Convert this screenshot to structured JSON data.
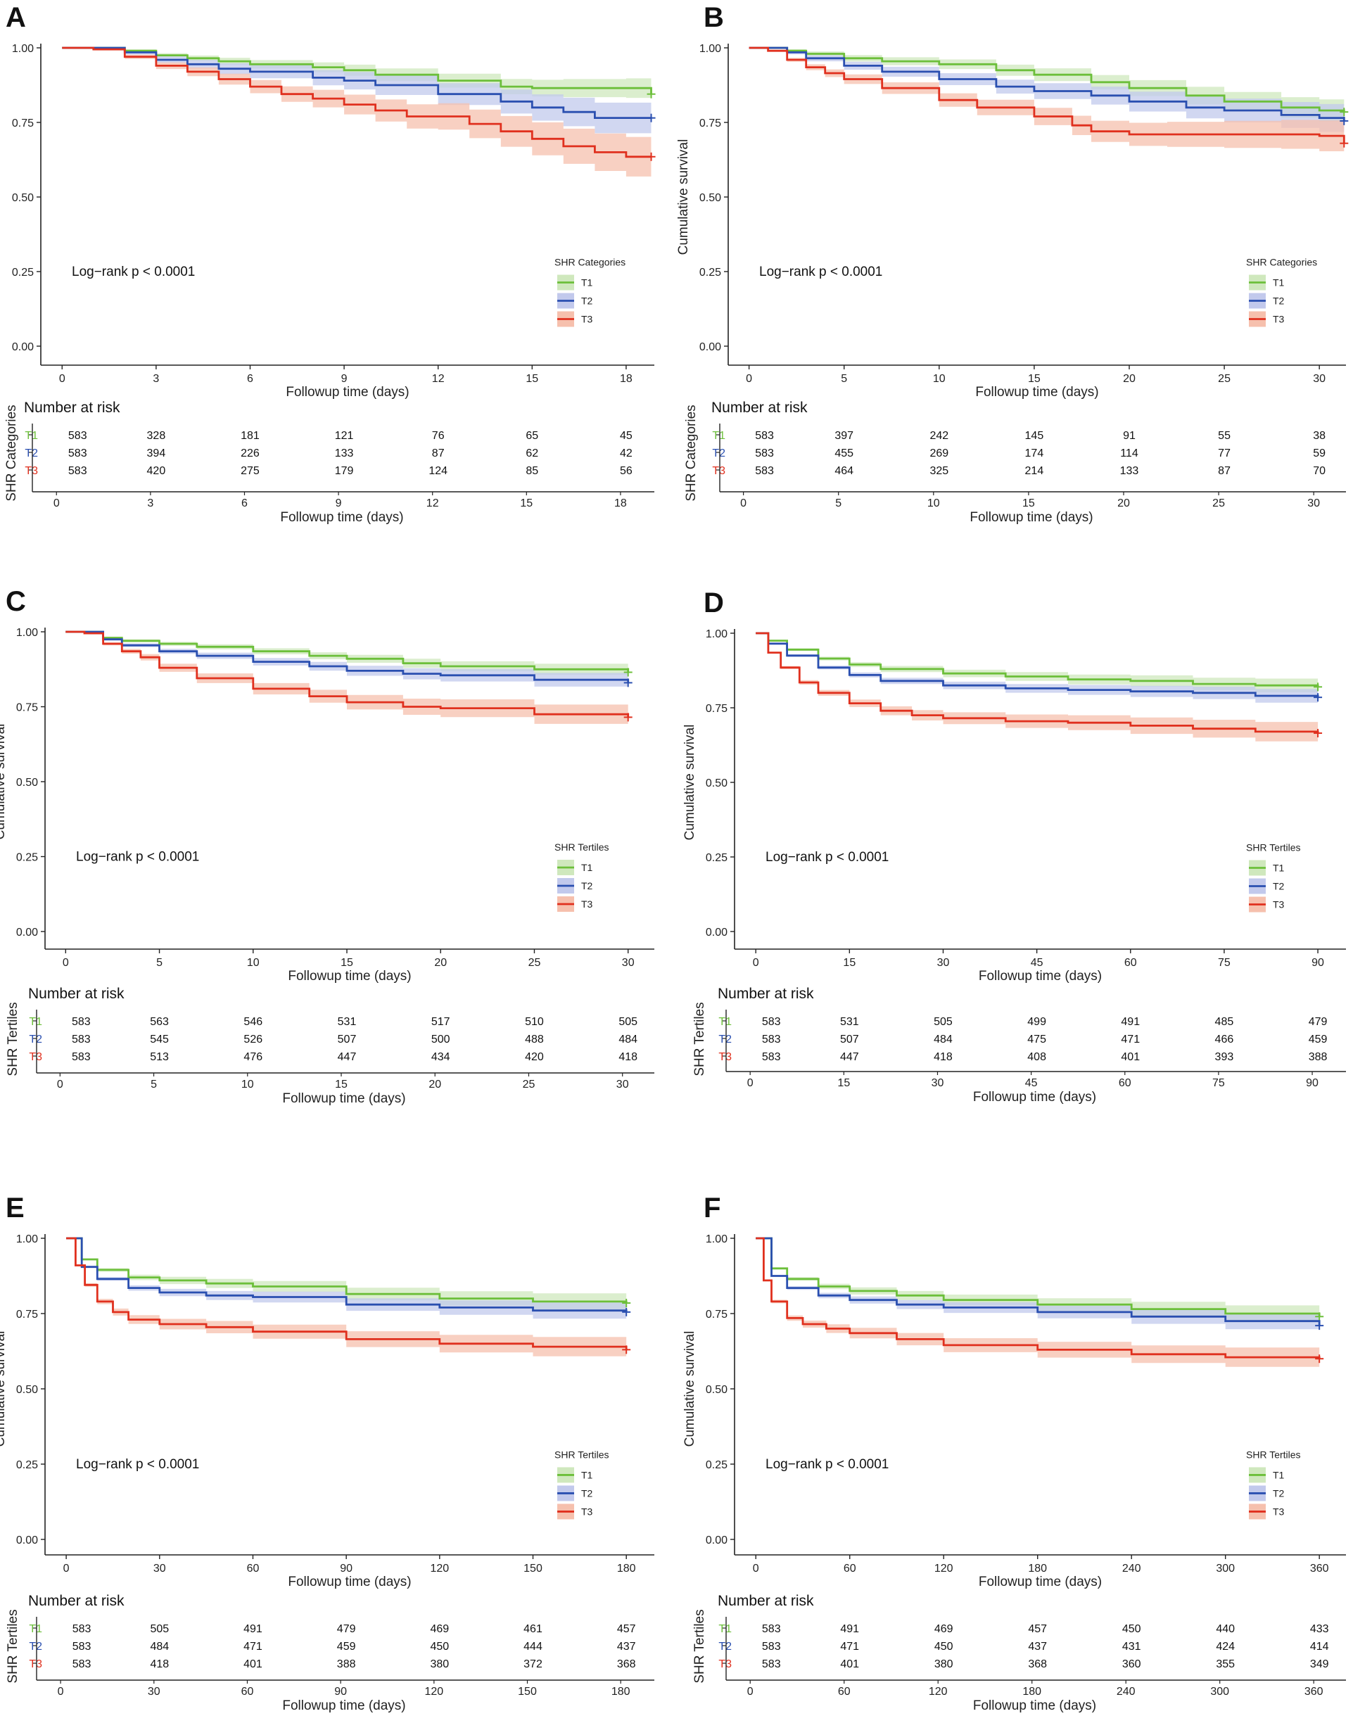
{
  "figure": {
    "colors": {
      "T1": "#6cbf3a",
      "T2": "#2a4fb0",
      "T3": "#e0301e",
      "T1_band": "#cfe8bd",
      "T2_band": "#c2c9ec",
      "T3_band": "#f6c0ad"
    },
    "logrank_text": "Log−rank p < 0.0001",
    "ylabel": "Cumulative survival",
    "xlabel": "Followup time (days)",
    "risk_title": "Number at risk",
    "y_ticks": [
      "0.00",
      "0.25",
      "0.50",
      "0.75",
      "1.00"
    ]
  },
  "chart_data": [
    {
      "panel": "A",
      "type": "line",
      "legend_title": "SHR Categories",
      "group_label": "SHR Categories",
      "xmax": 18,
      "xlim": [
        -0.5,
        18.9
      ],
      "xticks": [
        0,
        3,
        6,
        9,
        12,
        15,
        18
      ],
      "ylim": [
        0,
        1
      ],
      "series": [
        {
          "name": "T1",
          "x": [
            0,
            1,
            2,
            3,
            4,
            5,
            6,
            8,
            9,
            10,
            12,
            14,
            15,
            16,
            18,
            18.8
          ],
          "y": [
            1,
            1,
            0.99,
            0.975,
            0.965,
            0.955,
            0.945,
            0.935,
            0.925,
            0.91,
            0.89,
            0.87,
            0.865,
            0.865,
            0.865,
            0.845
          ],
          "band": 0.035
        },
        {
          "name": "T2",
          "x": [
            0,
            1,
            2,
            3,
            4,
            5,
            6,
            8,
            9,
            10,
            12,
            14,
            15,
            16,
            17,
            18.8
          ],
          "y": [
            1,
            1,
            0.985,
            0.96,
            0.945,
            0.93,
            0.92,
            0.9,
            0.89,
            0.875,
            0.845,
            0.82,
            0.8,
            0.785,
            0.765,
            0.765
          ],
          "band": 0.055
        },
        {
          "name": "T3",
          "x": [
            0,
            1,
            2,
            3,
            4,
            5,
            6,
            7,
            8,
            9,
            10,
            11,
            12,
            13,
            14,
            15,
            16,
            17,
            18,
            18.8
          ],
          "y": [
            1,
            0.995,
            0.97,
            0.94,
            0.92,
            0.895,
            0.87,
            0.845,
            0.83,
            0.81,
            0.79,
            0.77,
            0.77,
            0.745,
            0.72,
            0.695,
            0.67,
            0.65,
            0.635,
            0.635
          ],
          "band": 0.07
        }
      ],
      "risk_ticks": [
        0,
        3,
        6,
        9,
        12,
        15,
        18
      ],
      "risk": {
        "T1": [
          583,
          328,
          181,
          121,
          76,
          65,
          45
        ],
        "T2": [
          583,
          394,
          226,
          133,
          87,
          62,
          42
        ],
        "T3": [
          583,
          420,
          275,
          179,
          124,
          85,
          56
        ]
      }
    },
    {
      "panel": "B",
      "type": "line",
      "legend_title": "SHR Categories",
      "group_label": "SHR Categories",
      "xmax": 30,
      "xlim": [
        -0.8,
        31.4
      ],
      "xticks": [
        0,
        5,
        10,
        15,
        20,
        25,
        30
      ],
      "ylim": [
        0,
        1
      ],
      "series": [
        {
          "name": "T1",
          "x": [
            0,
            1,
            2,
            3,
            5,
            7,
            10,
            13,
            15,
            18,
            20,
            23,
            25,
            28,
            30,
            31.3
          ],
          "y": [
            1,
            1,
            0.99,
            0.98,
            0.965,
            0.955,
            0.945,
            0.925,
            0.91,
            0.885,
            0.865,
            0.84,
            0.82,
            0.8,
            0.79,
            0.785
          ],
          "band": 0.04
        },
        {
          "name": "T2",
          "x": [
            0,
            1,
            2,
            3,
            5,
            7,
            10,
            13,
            15,
            18,
            20,
            23,
            25,
            28,
            30,
            31.3
          ],
          "y": [
            1,
            1,
            0.985,
            0.965,
            0.94,
            0.92,
            0.895,
            0.87,
            0.855,
            0.84,
            0.82,
            0.8,
            0.79,
            0.775,
            0.765,
            0.755
          ],
          "band": 0.05
        },
        {
          "name": "T3",
          "x": [
            0,
            1,
            2,
            3,
            4,
            5,
            7,
            10,
            12,
            15,
            17,
            18,
            20,
            22,
            25,
            28,
            30,
            31.3
          ],
          "y": [
            1,
            0.99,
            0.96,
            0.935,
            0.915,
            0.895,
            0.865,
            0.825,
            0.8,
            0.77,
            0.74,
            0.72,
            0.71,
            0.71,
            0.71,
            0.71,
            0.705,
            0.68
          ],
          "band": 0.055
        }
      ],
      "risk_ticks": [
        0,
        5,
        10,
        15,
        20,
        25,
        30
      ],
      "risk": {
        "T1": [
          583,
          397,
          242,
          145,
          91,
          55,
          38
        ],
        "T2": [
          583,
          455,
          269,
          174,
          114,
          77,
          59
        ],
        "T3": [
          583,
          464,
          325,
          214,
          133,
          87,
          70
        ]
      }
    },
    {
      "panel": "C",
      "type": "line",
      "legend_title": "SHR Tertiles",
      "group_label": "SHR Tertiles",
      "xmax": 30,
      "xlim": [
        -0.8,
        31.4
      ],
      "xticks": [
        0,
        5,
        10,
        15,
        20,
        25,
        30
      ],
      "ylim": [
        0,
        1
      ],
      "series": [
        {
          "name": "T1",
          "x": [
            0,
            1,
            2,
            3,
            5,
            7,
            10,
            13,
            15,
            18,
            20,
            25,
            30
          ],
          "y": [
            1,
            1,
            0.98,
            0.97,
            0.96,
            0.95,
            0.935,
            0.92,
            0.91,
            0.895,
            0.885,
            0.875,
            0.865
          ],
          "band": 0.02
        },
        {
          "name": "T2",
          "x": [
            0,
            1,
            2,
            3,
            5,
            7,
            10,
            13,
            15,
            18,
            20,
            25,
            30
          ],
          "y": [
            1,
            1,
            0.975,
            0.955,
            0.935,
            0.92,
            0.9,
            0.885,
            0.87,
            0.86,
            0.855,
            0.84,
            0.83
          ],
          "band": 0.025
        },
        {
          "name": "T3",
          "x": [
            0,
            1,
            2,
            3,
            4,
            5,
            7,
            10,
            13,
            15,
            18,
            20,
            25,
            30
          ],
          "y": [
            1,
            0.995,
            0.96,
            0.935,
            0.915,
            0.88,
            0.845,
            0.81,
            0.785,
            0.765,
            0.75,
            0.745,
            0.725,
            0.715
          ],
          "band": 0.035
        }
      ],
      "risk_ticks": [
        0,
        5,
        10,
        15,
        20,
        25,
        30
      ],
      "risk": {
        "T1": [
          583,
          563,
          546,
          531,
          517,
          510,
          505
        ],
        "T2": [
          583,
          545,
          526,
          507,
          500,
          488,
          484
        ],
        "T3": [
          583,
          513,
          476,
          447,
          434,
          420,
          418
        ]
      }
    },
    {
      "panel": "D",
      "type": "line",
      "legend_title": "SHR Tertiles",
      "group_label": "SHR Tertiles",
      "xmax": 90,
      "xlim": [
        -2.5,
        94.5
      ],
      "xticks": [
        0,
        15,
        30,
        45,
        60,
        75,
        90
      ],
      "ylim": [
        0,
        1
      ],
      "series": [
        {
          "name": "T1",
          "x": [
            0,
            2,
            5,
            10,
            15,
            20,
            30,
            40,
            50,
            60,
            70,
            80,
            90
          ],
          "y": [
            1,
            0.975,
            0.945,
            0.915,
            0.895,
            0.88,
            0.865,
            0.855,
            0.845,
            0.84,
            0.83,
            0.825,
            0.82
          ],
          "band": 0.025
        },
        {
          "name": "T2",
          "x": [
            0,
            2,
            5,
            10,
            15,
            20,
            30,
            40,
            50,
            60,
            70,
            80,
            90
          ],
          "y": [
            1,
            0.965,
            0.925,
            0.885,
            0.86,
            0.84,
            0.825,
            0.815,
            0.81,
            0.805,
            0.8,
            0.79,
            0.785
          ],
          "band": 0.025
        },
        {
          "name": "T3",
          "x": [
            0,
            2,
            4,
            7,
            10,
            15,
            20,
            25,
            30,
            40,
            50,
            60,
            70,
            80,
            90
          ],
          "y": [
            1,
            0.935,
            0.885,
            0.835,
            0.8,
            0.765,
            0.74,
            0.725,
            0.715,
            0.705,
            0.7,
            0.69,
            0.68,
            0.67,
            0.665
          ],
          "band": 0.035
        }
      ],
      "risk_ticks": [
        0,
        15,
        30,
        45,
        60,
        75,
        90
      ],
      "risk": {
        "T1": [
          583,
          531,
          505,
          499,
          491,
          485,
          479
        ],
        "T2": [
          583,
          507,
          484,
          475,
          471,
          466,
          459
        ],
        "T3": [
          583,
          447,
          418,
          408,
          401,
          393,
          388
        ]
      }
    },
    {
      "panel": "E",
      "type": "line",
      "legend_title": "SHR Tertiles",
      "group_label": "SHR Tertiles",
      "xmax": 180,
      "xlim": [
        -5,
        189
      ],
      "xticks": [
        0,
        30,
        60,
        90,
        120,
        150,
        180
      ],
      "ylim": [
        0,
        1
      ],
      "series": [
        {
          "name": "T1",
          "x": [
            0,
            5,
            10,
            20,
            30,
            45,
            60,
            90,
            120,
            150,
            180
          ],
          "y": [
            1,
            0.93,
            0.895,
            0.87,
            0.86,
            0.85,
            0.84,
            0.815,
            0.8,
            0.79,
            0.785
          ],
          "band": 0.03
        },
        {
          "name": "T2",
          "x": [
            0,
            5,
            10,
            20,
            30,
            45,
            60,
            90,
            120,
            150,
            180
          ],
          "y": [
            1,
            0.905,
            0.865,
            0.835,
            0.82,
            0.81,
            0.805,
            0.78,
            0.77,
            0.76,
            0.755
          ],
          "band": 0.03
        },
        {
          "name": "T3",
          "x": [
            0,
            3,
            6,
            10,
            15,
            20,
            30,
            45,
            60,
            90,
            120,
            150,
            180
          ],
          "y": [
            1,
            0.91,
            0.845,
            0.79,
            0.755,
            0.73,
            0.715,
            0.705,
            0.69,
            0.665,
            0.65,
            0.64,
            0.63
          ],
          "band": 0.035
        }
      ],
      "risk_ticks": [
        0,
        30,
        60,
        90,
        120,
        150,
        180
      ],
      "risk": {
        "T1": [
          583,
          505,
          491,
          479,
          469,
          461,
          457
        ],
        "T2": [
          583,
          484,
          471,
          459,
          450,
          444,
          437
        ],
        "T3": [
          583,
          418,
          401,
          388,
          380,
          372,
          368
        ]
      }
    },
    {
      "panel": "F",
      "type": "line",
      "legend_title": "SHR Tertiles",
      "group_label": "SHR Tertiles",
      "xmax": 360,
      "xlim": [
        -10,
        377
      ],
      "xticks": [
        0,
        60,
        120,
        180,
        240,
        300,
        360
      ],
      "ylim": [
        0,
        1
      ],
      "series": [
        {
          "name": "T1",
          "x": [
            0,
            10,
            20,
            40,
            60,
            90,
            120,
            180,
            240,
            300,
            360
          ],
          "y": [
            1,
            0.9,
            0.865,
            0.84,
            0.825,
            0.81,
            0.795,
            0.78,
            0.765,
            0.75,
            0.74
          ],
          "band": 0.03
        },
        {
          "name": "T2",
          "x": [
            0,
            10,
            20,
            40,
            60,
            90,
            120,
            180,
            240,
            300,
            360
          ],
          "y": [
            1,
            0.875,
            0.835,
            0.81,
            0.795,
            0.78,
            0.77,
            0.755,
            0.74,
            0.725,
            0.71
          ],
          "band": 0.03
        },
        {
          "name": "T3",
          "x": [
            0,
            5,
            10,
            20,
            30,
            45,
            60,
            90,
            120,
            180,
            240,
            300,
            360
          ],
          "y": [
            1,
            0.86,
            0.79,
            0.735,
            0.715,
            0.7,
            0.685,
            0.665,
            0.645,
            0.63,
            0.615,
            0.605,
            0.6
          ],
          "band": 0.035
        }
      ],
      "risk_ticks": [
        0,
        60,
        120,
        180,
        240,
        300,
        360
      ],
      "risk": {
        "T1": [
          583,
          491,
          469,
          457,
          450,
          440,
          433
        ],
        "T2": [
          583,
          471,
          450,
          437,
          431,
          424,
          414
        ],
        "T3": [
          583,
          401,
          380,
          368,
          360,
          355,
          349
        ]
      }
    }
  ]
}
